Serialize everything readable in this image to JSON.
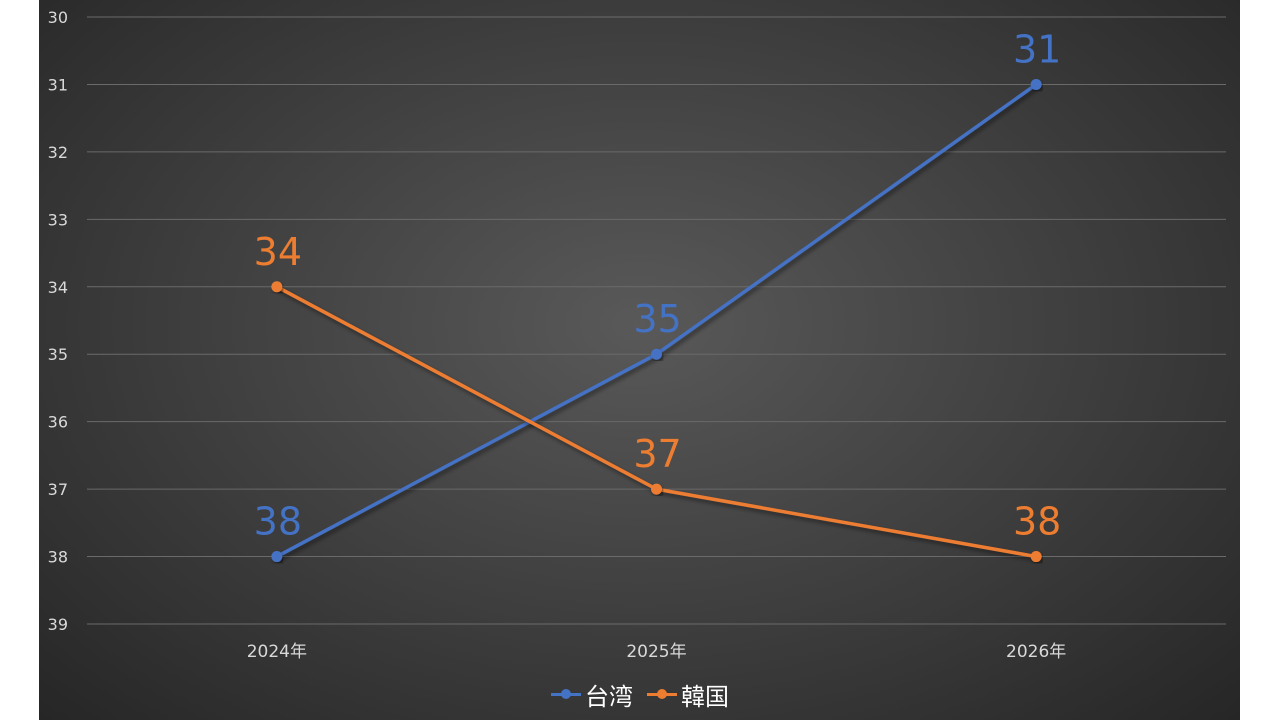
{
  "chart_data": {
    "type": "line",
    "categories": [
      "2024年",
      "2025年",
      "2026年"
    ],
    "series": [
      {
        "name": "台湾",
        "values": [
          38,
          35,
          31
        ],
        "color": "#4472c4"
      },
      {
        "name": "韓国",
        "values": [
          34,
          37,
          38
        ],
        "color": "#ed7d31"
      }
    ],
    "ylim": [
      30,
      39
    ],
    "y_reversed": true,
    "yticks": [
      "30",
      "31",
      "32",
      "33",
      "34",
      "35",
      "36",
      "37",
      "38",
      "39"
    ],
    "grid": true,
    "legend_position": "bottom",
    "data_labels": true
  }
}
